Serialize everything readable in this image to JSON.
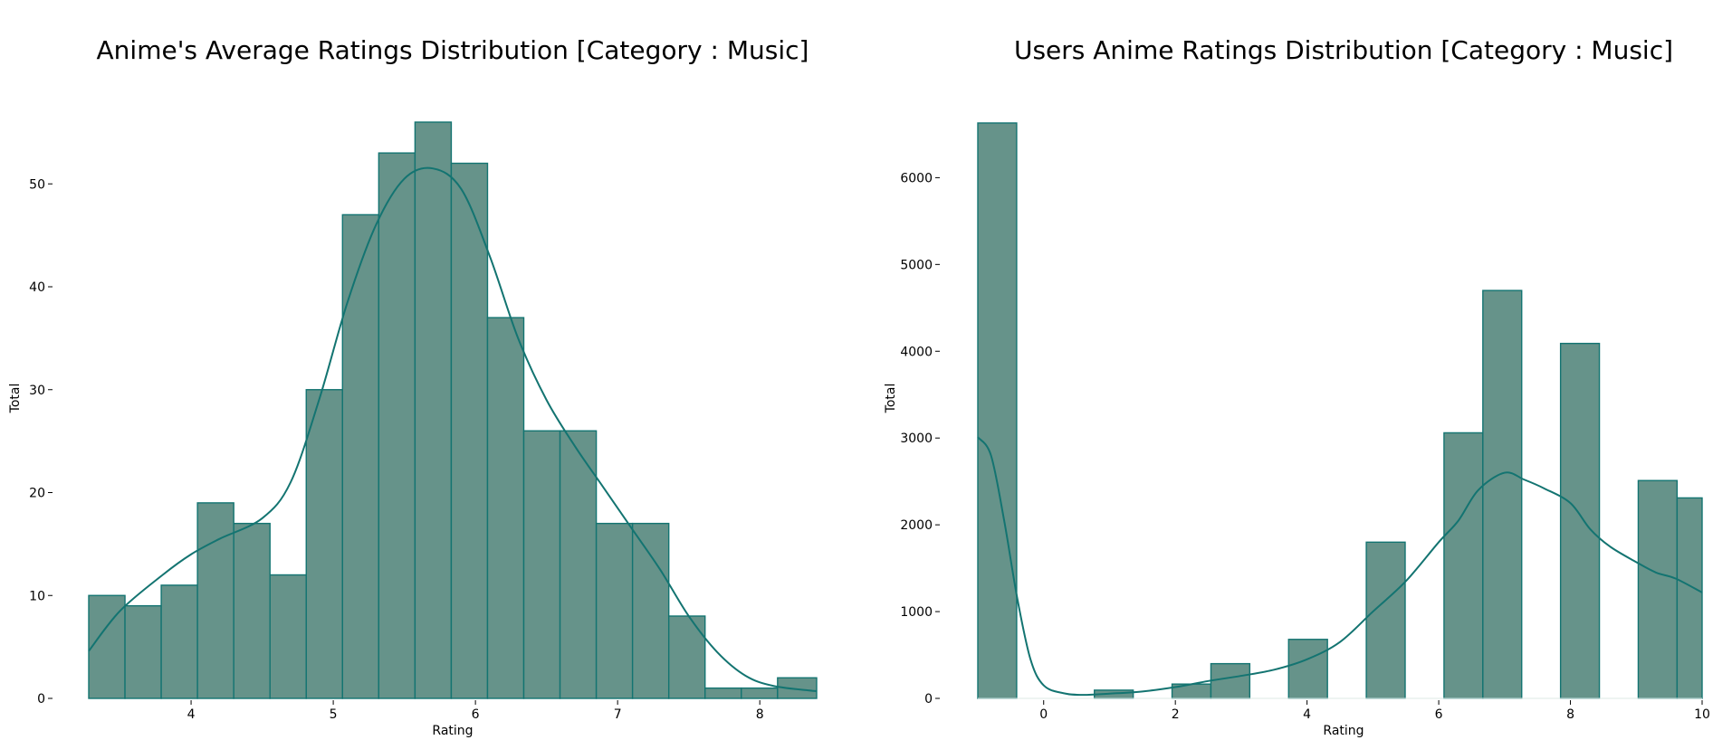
{
  "colors": {
    "bar_fill": "#66938A",
    "bar_edge": "#137471",
    "kde": "#137471",
    "axis": "#000000"
  },
  "chart_data": [
    {
      "type": "bar",
      "subtype": "histogram",
      "title": "Anime's Average Ratings Distribution [Category : Music]",
      "xlabel": "Rating",
      "ylabel": "Total",
      "xlim": [
        3.28,
        8.4
      ],
      "ylim": [
        0,
        56
      ],
      "xticks": [
        4,
        5,
        6,
        7,
        8
      ],
      "yticks": [
        0,
        10,
        20,
        30,
        40,
        50
      ],
      "bin_edges": [
        3.28,
        3.535,
        3.79,
        4.045,
        4.3,
        4.555,
        4.81,
        5.065,
        5.32,
        5.575,
        5.83,
        6.085,
        6.34,
        6.595,
        6.85,
        7.105,
        7.36,
        7.615,
        7.87,
        8.125,
        8.4
      ],
      "values": [
        10,
        9,
        11,
        19,
        17,
        12,
        30,
        47,
        53,
        56,
        52,
        37,
        26,
        26,
        17,
        17,
        8,
        1,
        1,
        2
      ],
      "kde": {
        "x": [
          3.28,
          3.5,
          3.8,
          4.0,
          4.2,
          4.5,
          4.7,
          4.9,
          5.1,
          5.3,
          5.5,
          5.7,
          5.9,
          6.1,
          6.3,
          6.5,
          6.7,
          6.9,
          7.1,
          7.3,
          7.5,
          7.7,
          7.9,
          8.1,
          8.4
        ],
        "y": [
          4.6,
          8.5,
          12.0,
          14.0,
          15.5,
          17.5,
          21.0,
          29.0,
          38.5,
          46.0,
          50.5,
          51.5,
          49.5,
          43.0,
          35.0,
          29.0,
          24.5,
          20.5,
          16.5,
          12.5,
          8.0,
          4.5,
          2.2,
          1.2,
          0.7
        ]
      },
      "grid": false
    },
    {
      "type": "bar",
      "subtype": "histogram",
      "title": "Users Anime Ratings Distribution [Category : Music]",
      "xlabel": "Rating",
      "ylabel": "Total",
      "xlim": [
        -1,
        10
      ],
      "ylim": [
        0,
        6640
      ],
      "xticks": [
        0,
        2,
        4,
        6,
        8,
        10
      ],
      "yticks": [
        0,
        1000,
        2000,
        3000,
        4000,
        5000,
        6000
      ],
      "bin_edges": [
        -1,
        -0.41,
        0.18,
        0.77,
        1.36,
        1.95,
        2.54,
        3.13,
        3.72,
        4.31,
        4.9,
        5.49,
        6.08,
        6.67,
        7.26,
        7.85,
        8.44,
        9.03,
        9.62,
        10
      ],
      "values": [
        6630,
        0,
        0,
        95,
        0,
        165,
        400,
        0,
        680,
        0,
        1800,
        0,
        3060,
        4700,
        0,
        4090,
        0,
        2510,
        2310
      ],
      "kde": {
        "x": [
          -1,
          -0.8,
          -0.6,
          -0.4,
          -0.2,
          0,
          0.3,
          0.6,
          1.0,
          1.5,
          2.0,
          2.5,
          3.0,
          3.5,
          4.0,
          4.5,
          5.0,
          5.5,
          6.0,
          6.3,
          6.6,
          7.0,
          7.3,
          7.6,
          8.0,
          8.3,
          8.6,
          9.0,
          9.3,
          9.6,
          10
        ],
        "y": [
          3010,
          2800,
          2050,
          1150,
          450,
          150,
          60,
          40,
          55,
          80,
          130,
          200,
          260,
          330,
          450,
          650,
          1000,
          1350,
          1800,
          2050,
          2400,
          2600,
          2520,
          2420,
          2250,
          1950,
          1750,
          1570,
          1450,
          1380,
          1220
        ]
      },
      "grid": false
    }
  ]
}
